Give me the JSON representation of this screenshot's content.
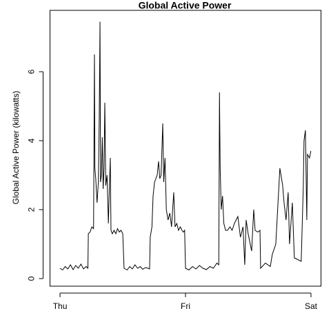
{
  "chart_data": {
    "type": "line",
    "title": "Global Active Power",
    "ylabel": "Global Active Power (kilowatts)",
    "x": [
      0,
      30,
      60,
      90,
      120,
      150,
      180,
      210,
      240,
      270,
      300,
      320,
      325,
      345,
      365,
      385,
      395,
      400,
      410,
      425,
      440,
      450,
      459,
      465,
      475,
      485,
      495,
      505,
      514,
      525,
      540,
      555,
      577,
      585,
      600,
      620,
      640,
      660,
      680,
      700,
      720,
      735,
      770,
      800,
      830,
      860,
      890,
      920,
      950,
      980,
      1010,
      1028,
      1035,
      1055,
      1068,
      1085,
      1100,
      1115,
      1131,
      1145,
      1160,
      1179,
      1190,
      1205,
      1220,
      1240,
      1260,
      1280,
      1305,
      1320,
      1340,
      1360,
      1380,
      1400,
      1415,
      1430,
      1440,
      1480,
      1520,
      1560,
      1600,
      1640,
      1680,
      1720,
      1760,
      1800,
      1822,
      1830,
      1838,
      1850,
      1865,
      1880,
      1900,
      1922,
      1950,
      1975,
      2001,
      2041,
      2070,
      2100,
      2120,
      2136,
      2159,
      2199,
      2223,
      2239,
      2270,
      2295,
      2302,
      2357,
      2413,
      2436,
      2476,
      2523,
      2555,
      2571,
      2594,
      2618,
      2634,
      2666,
      2689,
      2729,
      2768,
      2792,
      2800,
      2816,
      2832,
      2840,
      2863,
      2879
    ],
    "series": [
      {
        "color": "#000000",
        "values": [
          0.3,
          0.25,
          0.35,
          0.28,
          0.4,
          0.26,
          0.38,
          0.3,
          0.42,
          0.28,
          0.35,
          0.3,
          1.3,
          1.35,
          1.5,
          1.45,
          6.5,
          3.2,
          2.9,
          2.2,
          2.8,
          4.6,
          7.45,
          2.8,
          3.0,
          4.1,
          2.6,
          3.2,
          5.1,
          2.7,
          3.0,
          1.6,
          3.5,
          1.4,
          1.3,
          1.4,
          1.3,
          1.45,
          1.35,
          1.4,
          1.3,
          0.3,
          0.25,
          0.35,
          0.28,
          0.4,
          0.3,
          0.35,
          0.27,
          0.32,
          0.3,
          0.28,
          1.2,
          1.5,
          2.4,
          2.8,
          2.9,
          3.0,
          3.4,
          2.9,
          3.0,
          4.5,
          2.8,
          3.5,
          2.0,
          1.7,
          1.9,
          1.5,
          2.5,
          1.5,
          1.6,
          1.4,
          1.5,
          1.4,
          1.35,
          1.4,
          0.3,
          0.25,
          0.35,
          0.28,
          0.38,
          0.3,
          0.26,
          0.35,
          0.3,
          0.45,
          0.4,
          5.4,
          3.2,
          2.0,
          2.4,
          1.6,
          1.4,
          1.4,
          1.5,
          1.4,
          1.6,
          1.8,
          1.2,
          1.5,
          0.4,
          1.7,
          1.3,
          0.8,
          2.0,
          1.4,
          1.35,
          1.4,
          0.3,
          0.45,
          0.35,
          0.7,
          1.0,
          3.2,
          2.7,
          2.2,
          1.7,
          2.5,
          1.0,
          2.2,
          0.6,
          0.55,
          0.5,
          2.7,
          4.0,
          4.3,
          1.7,
          3.6,
          3.5,
          3.7
        ]
      }
    ],
    "xlim": [
      -115,
      2995
    ],
    "xticks": [
      {
        "value": 0,
        "label": "Thu"
      },
      {
        "value": 1440,
        "label": "Fri"
      },
      {
        "value": 2880,
        "label": "Sat"
      }
    ],
    "ylim": [
      -0.22,
      7.78
    ],
    "yticks": [
      0,
      2,
      4,
      6
    ]
  }
}
